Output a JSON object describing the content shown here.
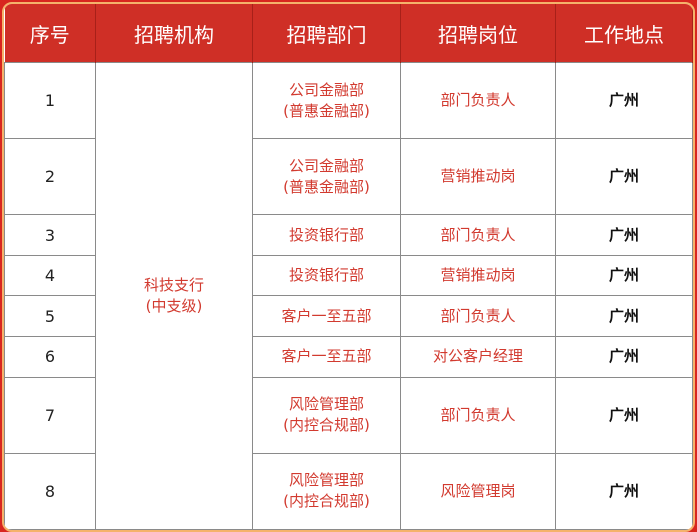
{
  "headers": [
    "序号",
    "招聘机构",
    "招聘部门",
    "招聘岗位",
    "工作地点"
  ],
  "institution": [
    "科技支行",
    "(中支级)"
  ],
  "rows": [
    {
      "no": "1",
      "dept": [
        "公司金融部",
        "(普惠金融部)"
      ],
      "post": "部门负责人",
      "loc": "广州"
    },
    {
      "no": "2",
      "dept": [
        "公司金融部",
        "(普惠金融部)"
      ],
      "post": "营销推动岗",
      "loc": "广州"
    },
    {
      "no": "3",
      "dept": [
        "投资银行部"
      ],
      "post": "部门负责人",
      "loc": "广州"
    },
    {
      "no": "4",
      "dept": [
        "投资银行部"
      ],
      "post": "营销推动岗",
      "loc": "广州"
    },
    {
      "no": "5",
      "dept": [
        "客户一至五部"
      ],
      "post": "部门负责人",
      "loc": "广州"
    },
    {
      "no": "6",
      "dept": [
        "客户一至五部"
      ],
      "post": "对公客户经理",
      "loc": "广州"
    },
    {
      "no": "7",
      "dept": [
        "风险管理部",
        "(内控合规部)"
      ],
      "post": "部门负责人",
      "loc": "广州"
    },
    {
      "no": "8",
      "dept": [
        "风险管理部",
        "(内控合规部)"
      ],
      "post": "风险管理岗",
      "loc": "广州"
    }
  ],
  "colors": {
    "header": "#cf2f26",
    "accent_text": "#d23a2f",
    "border": "#f5b26b"
  }
}
